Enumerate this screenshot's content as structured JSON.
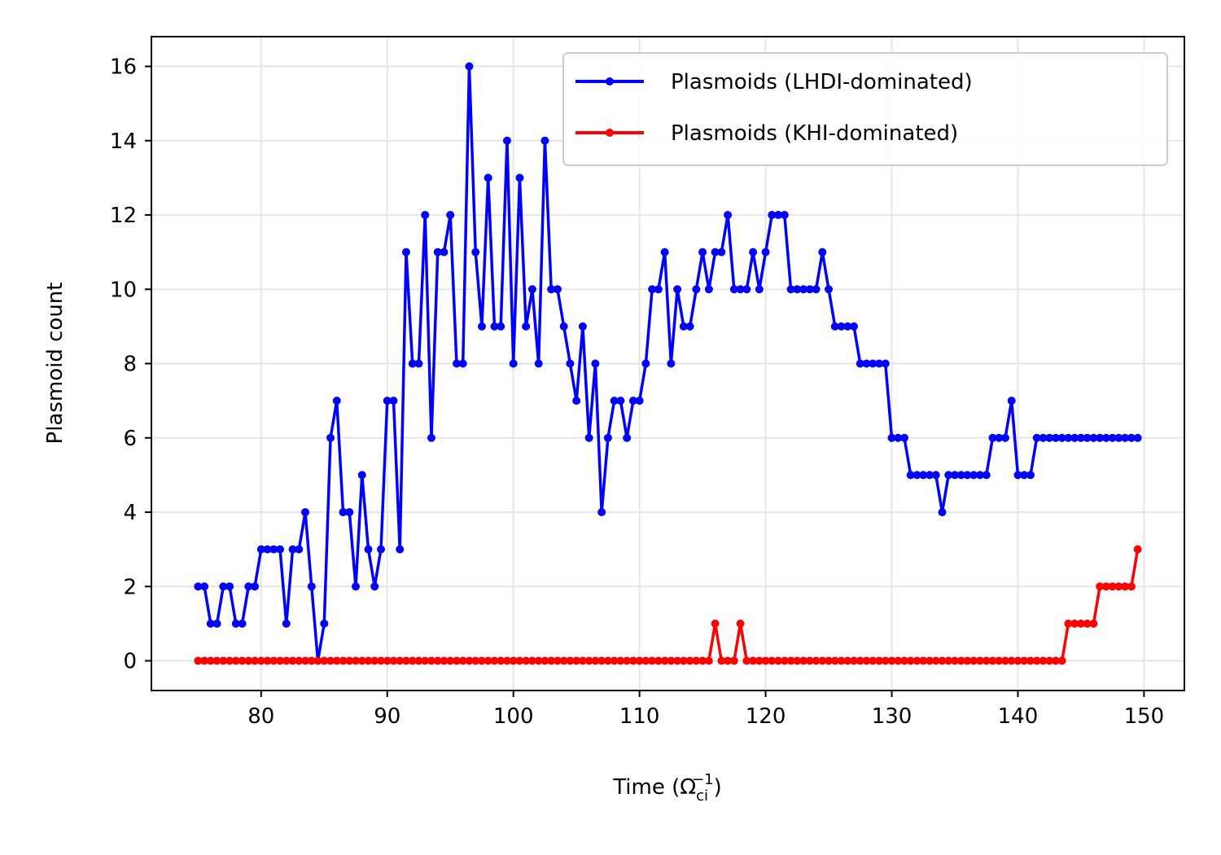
{
  "chart_data": {
    "type": "line",
    "xlabel": "Time",
    "xlabel_unit_base": "Ω",
    "xlabel_unit_sub": "ci",
    "xlabel_unit_sup": "−1",
    "ylabel": "Plasmoid count",
    "xlim": [
      71.3,
      153.2
    ],
    "ylim": [
      -0.8,
      16.8
    ],
    "xticks": [
      80,
      90,
      100,
      110,
      120,
      130,
      140,
      150
    ],
    "yticks": [
      0,
      2,
      4,
      6,
      8,
      10,
      12,
      14,
      16
    ],
    "grid": true,
    "legend_position": "top-right",
    "x": [
      75.0,
      75.5,
      76.0,
      76.5,
      77.0,
      77.5,
      78.0,
      78.5,
      79.0,
      79.5,
      80.0,
      80.5,
      81.0,
      81.5,
      82.0,
      82.5,
      83.0,
      83.5,
      84.0,
      84.5,
      85.0,
      85.5,
      86.0,
      86.5,
      87.0,
      87.5,
      88.0,
      88.5,
      89.0,
      89.5,
      90.0,
      90.5,
      91.0,
      91.5,
      92.0,
      92.5,
      93.0,
      93.5,
      94.0,
      94.5,
      95.0,
      95.5,
      96.0,
      96.5,
      97.0,
      97.5,
      98.0,
      98.5,
      99.0,
      99.5,
      100.0,
      100.5,
      101.0,
      101.5,
      102.0,
      102.5,
      103.0,
      103.5,
      104.0,
      104.5,
      105.0,
      105.5,
      106.0,
      106.5,
      107.0,
      107.5,
      108.0,
      108.5,
      109.0,
      109.5,
      110.0,
      110.5,
      111.0,
      111.5,
      112.0,
      112.5,
      113.0,
      113.5,
      114.0,
      114.5,
      115.0,
      115.5,
      116.0,
      116.5,
      117.0,
      117.5,
      118.0,
      118.5,
      119.0,
      119.5,
      120.0,
      120.5,
      121.0,
      121.5,
      122.0,
      122.5,
      123.0,
      123.5,
      124.0,
      124.5,
      125.0,
      125.5,
      126.0,
      126.5,
      127.0,
      127.5,
      128.0,
      128.5,
      129.0,
      129.5,
      130.0,
      130.5,
      131.0,
      131.5,
      132.0,
      132.5,
      133.0,
      133.5,
      134.0,
      134.5,
      135.0,
      135.5,
      136.0,
      136.5,
      137.0,
      137.5,
      138.0,
      138.5,
      139.0,
      139.5,
      140.0,
      140.5,
      141.0,
      141.5,
      142.0,
      142.5,
      143.0,
      143.5,
      144.0,
      144.5,
      145.0,
      145.5,
      146.0,
      146.5,
      147.0,
      147.5,
      148.0,
      148.5,
      149.0,
      149.5
    ],
    "series": [
      {
        "name": "Plasmoids (LHDI-dominated)",
        "color": "#0000ff",
        "values": [
          2,
          2,
          1,
          1,
          2,
          2,
          1,
          1,
          2,
          2,
          3,
          3,
          3,
          3,
          1,
          3,
          3,
          4,
          2,
          0,
          1,
          6,
          7,
          4,
          4,
          2,
          5,
          3,
          2,
          3,
          7,
          7,
          3,
          11,
          8,
          8,
          12,
          6,
          11,
          11,
          12,
          8,
          8,
          16,
          11,
          9,
          13,
          9,
          9,
          14,
          8,
          13,
          9,
          10,
          8,
          14,
          10,
          10,
          9,
          8,
          7,
          9,
          6,
          8,
          4,
          6,
          7,
          7,
          6,
          7,
          7,
          8,
          10,
          10,
          11,
          8,
          10,
          9,
          9,
          10,
          11,
          10,
          11,
          11,
          12,
          10,
          10,
          10,
          11,
          10,
          11,
          12,
          12,
          12,
          10,
          10,
          10,
          10,
          10,
          11,
          10,
          9,
          9,
          9,
          9,
          8,
          8,
          8,
          8,
          8,
          6,
          6,
          6,
          5,
          5,
          5,
          5,
          5,
          4,
          5,
          5,
          5,
          5,
          5,
          5,
          5,
          6,
          6,
          6,
          7,
          5,
          5,
          5,
          6,
          6,
          6,
          6,
          6,
          6,
          6,
          6,
          6,
          6,
          6,
          6,
          6,
          6,
          6,
          6,
          6
        ]
      },
      {
        "name": "Plasmoids (KHI-dominated)",
        "color": "#ff0000",
        "values": [
          0,
          0,
          0,
          0,
          0,
          0,
          0,
          0,
          0,
          0,
          0,
          0,
          0,
          0,
          0,
          0,
          0,
          0,
          0,
          0,
          0,
          0,
          0,
          0,
          0,
          0,
          0,
          0,
          0,
          0,
          0,
          0,
          0,
          0,
          0,
          0,
          0,
          0,
          0,
          0,
          0,
          0,
          0,
          0,
          0,
          0,
          0,
          0,
          0,
          0,
          0,
          0,
          0,
          0,
          0,
          0,
          0,
          0,
          0,
          0,
          0,
          0,
          0,
          0,
          0,
          0,
          0,
          0,
          0,
          0,
          0,
          0,
          0,
          0,
          0,
          0,
          0,
          0,
          0,
          0,
          0,
          0,
          1,
          0,
          0,
          0,
          1,
          0,
          0,
          0,
          0,
          0,
          0,
          0,
          0,
          0,
          0,
          0,
          0,
          0,
          0,
          0,
          0,
          0,
          0,
          0,
          0,
          0,
          0,
          0,
          0,
          0,
          0,
          0,
          0,
          0,
          0,
          0,
          0,
          0,
          0,
          0,
          0,
          0,
          0,
          0,
          0,
          0,
          0,
          0,
          0,
          0,
          0,
          0,
          0,
          0,
          0,
          0,
          1,
          1,
          1,
          1,
          1,
          2,
          2,
          2,
          2,
          2,
          2,
          3
        ]
      }
    ]
  }
}
